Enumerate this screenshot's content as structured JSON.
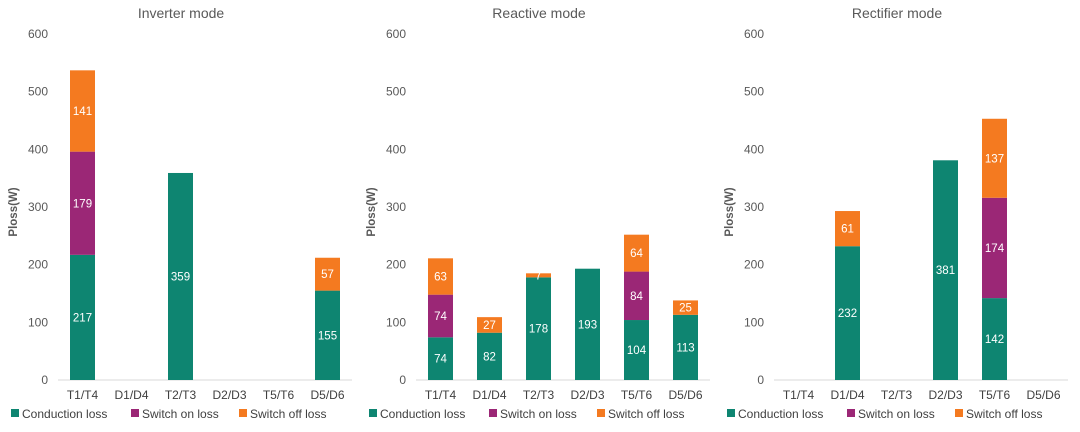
{
  "chart_data": [
    {
      "type": "bar",
      "stacked": true,
      "title": "Inverter mode",
      "ylabel": "Ploss(W)",
      "xlabel": "",
      "ylim": [
        0,
        600
      ],
      "yticks": [
        0,
        100,
        200,
        300,
        400,
        500,
        600
      ],
      "grid": false,
      "legend": "bottom",
      "categories": [
        "T1/T4",
        "D1/D4",
        "T2/T3",
        "D2/D3",
        "T5/T6",
        "D5/D6"
      ],
      "series": [
        {
          "name": "Conduction loss",
          "color": "#0E8571",
          "values": [
            217,
            null,
            359,
            null,
            null,
            155
          ]
        },
        {
          "name": "Switch on loss",
          "color": "#9B2776",
          "values": [
            179,
            null,
            null,
            null,
            null,
            null
          ]
        },
        {
          "name": "Switch off loss",
          "color": "#F47A20",
          "values": [
            141,
            null,
            null,
            null,
            null,
            57
          ]
        }
      ]
    },
    {
      "type": "bar",
      "stacked": true,
      "title": "Reactive mode",
      "ylabel": "Ploss(W)",
      "xlabel": "",
      "ylim": [
        0,
        600
      ],
      "yticks": [
        0,
        100,
        200,
        300,
        400,
        500,
        600
      ],
      "grid": false,
      "legend": "bottom",
      "categories": [
        "T1/T4",
        "D1/D4",
        "T2/T3",
        "D2/D3",
        "T5/T6",
        "D5/D6"
      ],
      "series": [
        {
          "name": "Conduction loss",
          "color": "#0E8571",
          "values": [
            74,
            82,
            178,
            193,
            104,
            113
          ]
        },
        {
          "name": "Switch on loss",
          "color": "#9B2776",
          "values": [
            74,
            null,
            null,
            null,
            84,
            null
          ]
        },
        {
          "name": "Switch off loss",
          "color": "#F47A20",
          "values": [
            63,
            27,
            7,
            null,
            64,
            25
          ]
        }
      ]
    },
    {
      "type": "bar",
      "stacked": true,
      "title": "Rectifier mode",
      "ylabel": "Ploss(W)",
      "xlabel": "",
      "ylim": [
        0,
        600
      ],
      "yticks": [
        0,
        100,
        200,
        300,
        400,
        500,
        600
      ],
      "grid": false,
      "legend": "bottom",
      "categories": [
        "T1/T4",
        "D1/D4",
        "T2/T3",
        "D2/D3",
        "T5/T6",
        "D5/D6"
      ],
      "series": [
        {
          "name": "Conduction loss",
          "color": "#0E8571",
          "values": [
            null,
            232,
            null,
            381,
            142,
            null
          ]
        },
        {
          "name": "Switch on loss",
          "color": "#9B2776",
          "values": [
            null,
            null,
            null,
            null,
            174,
            null
          ]
        },
        {
          "name": "Switch off loss",
          "color": "#F47A20",
          "values": [
            null,
            61,
            null,
            null,
            137,
            null
          ]
        }
      ]
    }
  ]
}
